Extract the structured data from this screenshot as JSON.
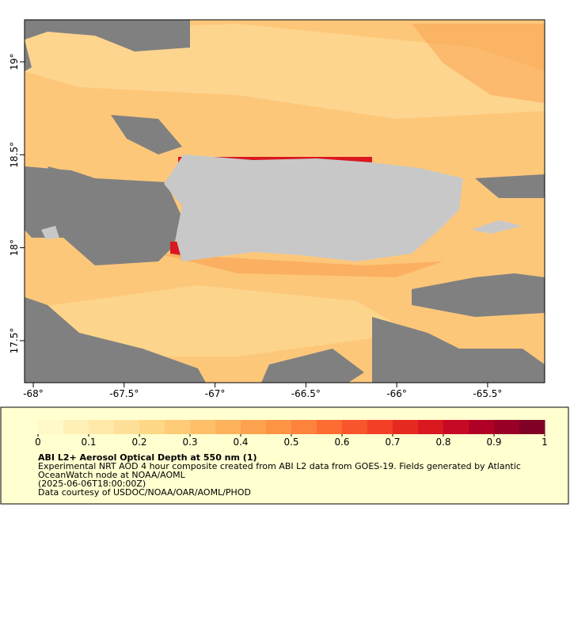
{
  "chart_data": {
    "type": "map",
    "xlim": [
      -68.048,
      -65.186
    ],
    "ylim": [
      17.274,
      19.226
    ],
    "xticks": [
      {
        "value": -68,
        "label": "-68°"
      },
      {
        "value": -67.5,
        "label": "-67.5°"
      },
      {
        "value": -67,
        "label": "-67°"
      },
      {
        "value": -66.5,
        "label": "-66.5°"
      },
      {
        "value": -66,
        "label": "-66°"
      },
      {
        "value": -65.5,
        "label": "-65.5°"
      }
    ],
    "yticks": [
      {
        "value": 17.5,
        "label": "17.5°"
      },
      {
        "value": 18,
        "label": "18°"
      },
      {
        "value": 18.5,
        "label": "18.5°"
      },
      {
        "value": 19,
        "label": "19°"
      }
    ],
    "colorbar": {
      "lim": [
        0,
        1
      ],
      "ticks": [
        0,
        0.1,
        0.2,
        0.3,
        0.4,
        0.5,
        0.6,
        0.7,
        0.8,
        0.9,
        1
      ],
      "colors": [
        "#fff8c8",
        "#fff0b8",
        "#ffe8a8",
        "#ffe098",
        "#fed787",
        "#fecc78",
        "#febf6a",
        "#feb25c",
        "#fea24f",
        "#fd9444",
        "#fd823c",
        "#fc6c33",
        "#f9552c",
        "#f23f26",
        "#e72a21",
        "#d9181f",
        "#c60a26",
        "#b00026",
        "#990026",
        "#800026"
      ]
    },
    "title": "ABI L2+ Aerosol Optical Depth at 550 nm (1)",
    "description": [
      "Experimental NRT AOD 4 hour composite created from ABI L2 data from GOES-19. Fields generated by Atlantic",
      "OceanWatch node at NOAA/AOML",
      "(2025-06-06T18:00:00Z)",
      "Data courtesy of USDOC/NOAA/OAR/AOML/PHOD"
    ]
  }
}
